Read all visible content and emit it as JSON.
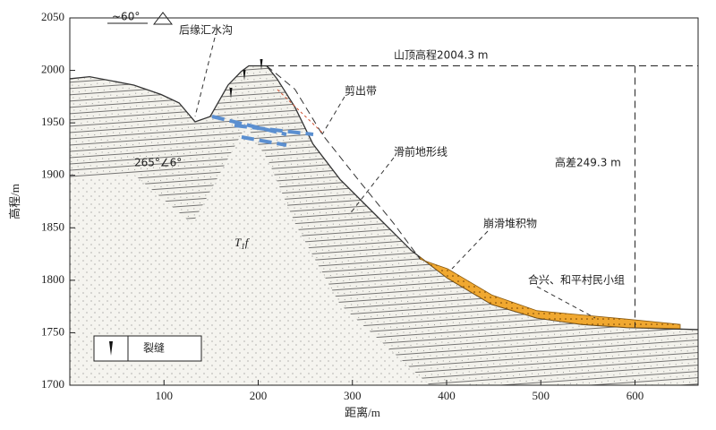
{
  "chart_data": {
    "type": "profile",
    "xlabel": "距离/m",
    "ylabel": "高程/m",
    "xlim": [
      0,
      667
    ],
    "ylim": [
      1700,
      2050
    ],
    "xticks": [
      100,
      200,
      300,
      400,
      500,
      600
    ],
    "yticks": [
      1700,
      1750,
      1800,
      1850,
      1900,
      1950,
      2000,
      2050
    ],
    "series": [
      {
        "color": "#333333",
        "x": [
          0,
          21,
          68,
          97,
          116,
          133,
          149,
          168,
          182,
          190,
          209,
          220,
          239,
          258,
          287,
          325,
          363,
          401,
          448,
          496,
          543,
          591,
          667
        ],
        "values": [
          1992,
          1994,
          1986,
          1977,
          1969,
          1951,
          1956,
          1986,
          1999,
          2004.3,
          2004.3,
          1992,
          1965,
          1930,
          1896,
          1862,
          1828,
          1802,
          1777,
          1764,
          1758,
          1755,
          1753
        ]
      },
      {
        "color": "#333333",
        "dashed": true,
        "x": [
          209,
          239,
          268,
          306,
          344,
          372
        ],
        "values": [
          2004.3,
          1982,
          1939,
          1896,
          1854,
          1820
        ]
      },
      {
        "color": "#f0a830",
        "x": [
          372,
          401,
          448,
          496,
          543,
          591,
          648
        ],
        "values": [
          1820,
          1811,
          1786,
          1771,
          1767,
          1763,
          1758
        ],
        "base": [
          1822,
          1802,
          1777,
          1764,
          1758,
          1755,
          1754
        ]
      }
    ],
    "summit_elevation": 2004.3,
    "height_difference": 249.3,
    "annotations": [
      "~60°",
      "后缘汇水沟",
      "山顶高程2004.3 m",
      "剪出带",
      "滑前地形线",
      "高差249.3 m",
      "265°∠6°",
      "崩滑堆积物",
      "合兴、和平村民小组"
    ],
    "stratum": {
      "symbol": "T",
      "sub": "1",
      "suffix": "f"
    },
    "legend": {
      "label": "裂缝"
    }
  }
}
